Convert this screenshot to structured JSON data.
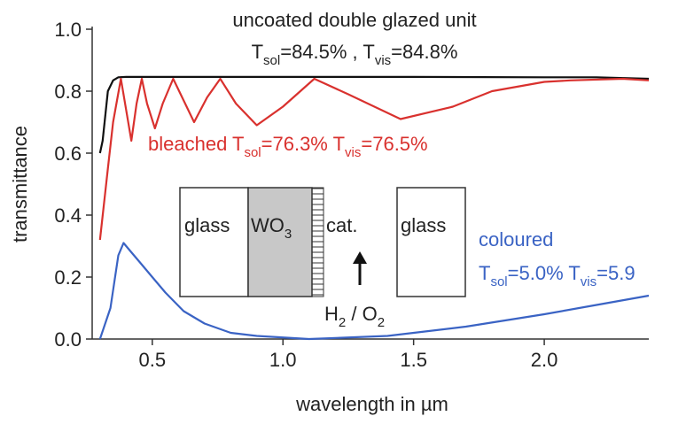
{
  "chart_data": {
    "type": "line",
    "title": "uncoated double glazed unit",
    "x_label": "wavelength in µm",
    "y_label": "transmittance",
    "xlim": [
      0.27,
      2.4
    ],
    "ylim": [
      0,
      1.0
    ],
    "xticks": [
      0.5,
      {
        "value": 1.0,
        "label": "1.0"
      },
      1.5,
      {
        "value": 2.0,
        "label": "2.0"
      }
    ],
    "yticks": [
      {
        "value": 0,
        "label": "0.0"
      },
      0.2,
      0.4,
      0.6,
      0.8,
      {
        "value": 1.0,
        "label": "1.0"
      }
    ],
    "series": [
      {
        "color": "#111111",
        "x": [
          0.3,
          0.31,
          0.33,
          0.35,
          0.37,
          0.4,
          0.6,
          1.0,
          1.5,
          2.0,
          2.2,
          2.4
        ],
        "values": [
          0.6,
          0.64,
          0.8,
          0.835,
          0.845,
          0.846,
          0.846,
          0.846,
          0.846,
          0.845,
          0.845,
          0.84
        ]
      },
      {
        "color": "#d9312e",
        "x": [
          0.3,
          0.33,
          0.35,
          0.38,
          0.4,
          0.42,
          0.44,
          0.46,
          0.48,
          0.51,
          0.54,
          0.58,
          0.62,
          0.66,
          0.71,
          0.76,
          0.82,
          0.9,
          1.0,
          1.12,
          1.25,
          1.45,
          1.65,
          1.8,
          2.0,
          2.1,
          2.3,
          2.4
        ],
        "values": [
          0.32,
          0.55,
          0.7,
          0.84,
          0.74,
          0.64,
          0.76,
          0.84,
          0.76,
          0.68,
          0.76,
          0.84,
          0.77,
          0.7,
          0.78,
          0.84,
          0.76,
          0.69,
          0.75,
          0.84,
          0.79,
          0.71,
          0.75,
          0.8,
          0.83,
          0.835,
          0.84,
          0.835
        ]
      },
      {
        "color": "#3a63c4",
        "x": [
          0.3,
          0.34,
          0.37,
          0.39,
          0.42,
          0.45,
          0.5,
          0.55,
          0.62,
          0.7,
          0.8,
          0.9,
          1.1,
          1.4,
          1.7,
          2.0,
          2.2,
          2.4
        ],
        "values": [
          0,
          0.1,
          0.27,
          0.31,
          0.28,
          0.25,
          0.2,
          0.15,
          0.09,
          0.05,
          0.02,
          0.01,
          0,
          0.01,
          0.04,
          0.08,
          0.11,
          0.14
        ]
      }
    ],
    "annotations": [
      {
        "color": "#222222",
        "parts": [
          {
            "text": "T"
          },
          {
            "text": "sol",
            "sub": true
          },
          {
            "text": "=84.5% , T"
          },
          {
            "text": "vis",
            "sub": true
          },
          {
            "text": "=84.8%"
          }
        ]
      },
      {
        "color": "#d9312e",
        "parts": [
          {
            "text": "bleached  T"
          },
          {
            "text": "sol",
            "sub": true
          },
          {
            "text": "=76.3% T"
          },
          {
            "text": "vis",
            "sub": true
          },
          {
            "text": "=76.5%"
          }
        ]
      },
      {
        "color": "#3a63c4",
        "parts": [
          {
            "text": "coloured"
          }
        ]
      },
      {
        "color": "#3a63c4",
        "parts": [
          {
            "text": "T"
          },
          {
            "text": "sol",
            "sub": true
          },
          {
            "text": "=5.0% T"
          },
          {
            "text": "vis",
            "sub": true
          },
          {
            "text": "=5.9"
          }
        ]
      },
      {
        "color": "#222222",
        "parts": [
          {
            "text": "glass"
          }
        ]
      },
      {
        "color": "#222222",
        "parts": [
          {
            "text": "WO"
          },
          {
            "text": "3",
            "sub": true
          }
        ]
      },
      {
        "color": "#222222",
        "parts": [
          {
            "text": "cat."
          }
        ]
      },
      {
        "color": "#222222",
        "parts": [
          {
            "text": "glass"
          }
        ]
      },
      {
        "color": "#222222",
        "parts": [
          {
            "text": "H"
          },
          {
            "text": "2",
            "sub": true
          },
          {
            "text": " / O"
          },
          {
            "text": "2",
            "sub": true
          }
        ]
      }
    ]
  }
}
